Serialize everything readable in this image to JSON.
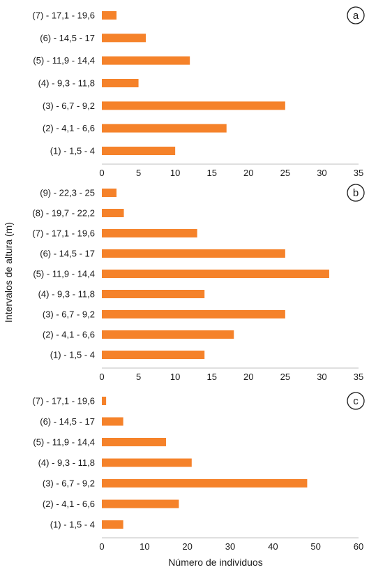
{
  "chart_data": [
    {
      "type": "bar",
      "orientation": "horizontal",
      "panel_label": "a",
      "categories": [
        "(1) - 1,5 - 4",
        "(2) - 4,1 - 6,6",
        "(3) - 6,7 - 9,2",
        "(4) - 9,3 - 11,8",
        "(5) - 11,9 - 14,4",
        "(6) - 14,5 - 17",
        "(7) - 17,1 - 19,6"
      ],
      "values": [
        10,
        17,
        25,
        5,
        12,
        6,
        2
      ],
      "xlim": [
        0,
        35
      ],
      "xticks": [
        "0",
        "5",
        "10",
        "15",
        "20",
        "25",
        "30",
        "35"
      ],
      "grid": false,
      "color": "#F5822A"
    },
    {
      "type": "bar",
      "orientation": "horizontal",
      "panel_label": "b",
      "categories": [
        "(1) - 1,5 - 4",
        "(2) - 4,1 - 6,6",
        "(3) - 6,7 - 9,2",
        "(4) - 9,3 - 11,8",
        "(5) - 11,9 - 14,4",
        "(6) - 14,5 - 17",
        "(7) - 17,1 - 19,6",
        "(8) - 19,7 - 22,2",
        "(9) - 22,3 - 25"
      ],
      "values": [
        14,
        18,
        25,
        14,
        31,
        25,
        13,
        3,
        2
      ],
      "xlim": [
        0,
        35
      ],
      "xticks": [
        "0",
        "5",
        "10",
        "15",
        "20",
        "25",
        "30",
        "35"
      ],
      "grid": false,
      "color": "#F5822A"
    },
    {
      "type": "bar",
      "orientation": "horizontal",
      "panel_label": "c",
      "categories": [
        "(1) - 1,5 - 4",
        "(2) - 4,1 - 6,6",
        "(3) - 6,7 - 9,2",
        "(4) - 9,3 - 11,8",
        "(5) - 11,9 - 14,4",
        "(6) - 14,5 - 17",
        "(7) - 17,1 - 19,6"
      ],
      "values": [
        5,
        18,
        48,
        21,
        15,
        5,
        1
      ],
      "xlim": [
        0,
        60
      ],
      "xticks": [
        "0",
        "10",
        "20",
        "30",
        "40",
        "50",
        "60"
      ],
      "grid": false,
      "color": "#F5822A"
    }
  ],
  "ylabel": "Intervalos de altura (m)",
  "xlabel": "Número de individuos"
}
